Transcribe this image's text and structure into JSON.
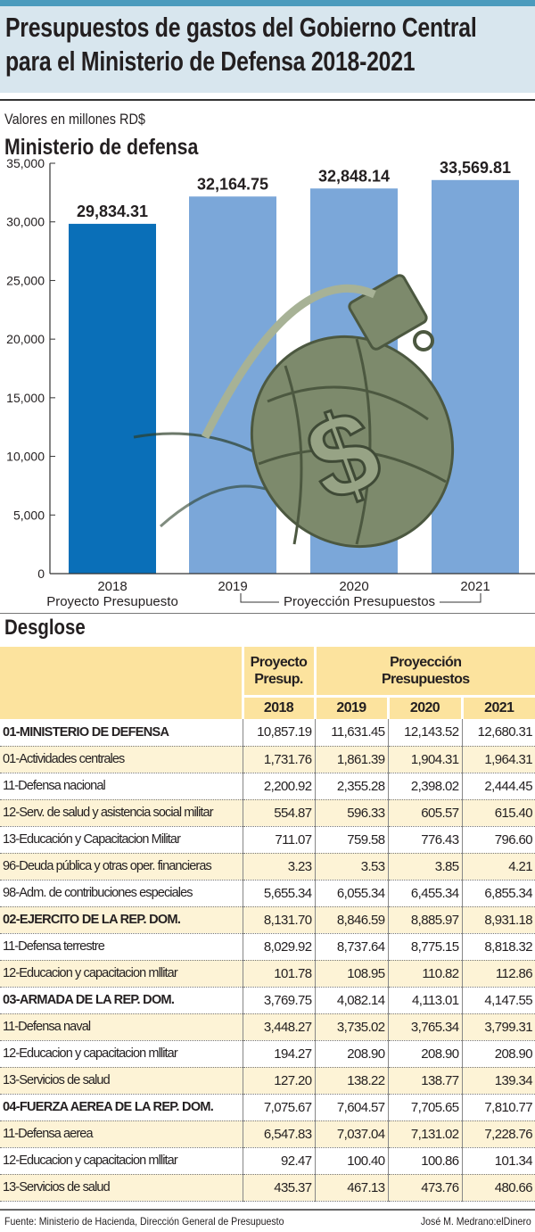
{
  "header": {
    "title_line1": "Presupuestos de gastos del Gobierno Central",
    "title_line2": "para el Ministerio de Defensa 2018-2021",
    "units": "Valores en millones RD$"
  },
  "chart_data": {
    "type": "bar",
    "title": "Ministerio de defensa",
    "categories": [
      "2018",
      "2019",
      "2020",
      "2021"
    ],
    "values": [
      29834.31,
      32164.75,
      32848.14,
      33569.81
    ],
    "data_labels": [
      "29,834.31",
      "32,164.75",
      "32,848.14",
      "33,569.81"
    ],
    "ylim": [
      0,
      35000
    ],
    "yticks": [
      "0",
      "5,000",
      "10,000",
      "15,000",
      "20,000",
      "25,000",
      "30,000",
      "35,000"
    ],
    "grid": false,
    "group_labels": [
      "Proyecto Presupuesto",
      "Proyección Presupuestos"
    ],
    "colors": {
      "2018": "#0a6fb8",
      "projection": "#7ba7d9"
    },
    "decoration": "grenade-with-dollar-sign"
  },
  "table": {
    "title": "Desglose",
    "header_group1": [
      "Proyecto",
      "Presup."
    ],
    "header_group2": [
      "Proyección",
      "Presupuestos"
    ],
    "years": [
      "2018",
      "2019",
      "2020",
      "2021"
    ],
    "rows": [
      {
        "label": "01-MINISTERIO DE DEFENSA",
        "bold": true,
        "values": [
          "10,857.19",
          "11,631.45",
          "12,143.52",
          "12,680.31"
        ]
      },
      {
        "label": "01-Actividades centrales",
        "values": [
          "1,731.76",
          "1,861.39",
          "1,904.31",
          "1,964.31"
        ]
      },
      {
        "label": "11-Defensa nacional",
        "values": [
          "2,200.92",
          "2,355.28",
          "2,398.02",
          "2,444.45"
        ]
      },
      {
        "label": "12-Serv. de salud y asistencia social militar",
        "values": [
          "554.87",
          "596.33",
          "605.57",
          "615.40"
        ]
      },
      {
        "label": "13-Educación y Capacitacion Militar",
        "values": [
          "711.07",
          "759.58",
          "776.43",
          "796.60"
        ]
      },
      {
        "label": "96-Deuda pública y otras oper. financieras",
        "values": [
          "3.23",
          "3.53",
          "3.85",
          "4.21"
        ]
      },
      {
        "label": "98-Adm. de contribuciones especiales",
        "values": [
          "5,655.34",
          "6,055.34",
          "6,455.34",
          "6,855.34"
        ]
      },
      {
        "label": "02-EJERCITO DE LA  REP. DOM.",
        "bold": true,
        "values": [
          "8,131.70",
          "8,846.59",
          "8,885.97",
          "8,931.18"
        ]
      },
      {
        "label": "11-Defensa terrestre",
        "values": [
          "8,029.92",
          "8,737.64",
          "8,775.15",
          "8,818.32"
        ]
      },
      {
        "label": "12-Educacion y capacitacion mllitar",
        "values": [
          "101.78",
          "108.95",
          "110.82",
          "112.86"
        ]
      },
      {
        "label": "03-ARMADA DE LA REP. DOM.",
        "bold": true,
        "values": [
          "3,769.75",
          "4,082.14",
          "4,113.01",
          "4,147.55"
        ]
      },
      {
        "label": "11-Defensa naval",
        "values": [
          "3,448.27",
          "3,735.02",
          "3,765.34",
          "3,799.31"
        ]
      },
      {
        "label": "12-Educacion y capacitacion mllitar",
        "values": [
          "194.27",
          "208.90",
          "208.90",
          "208.90"
        ]
      },
      {
        "label": "13-Servicios de salud",
        "values": [
          "127.20",
          "138.22",
          "138.77",
          "139.34"
        ]
      },
      {
        "label": "04-FUERZA AEREA DE LA  REP. DOM.",
        "bold": true,
        "values": [
          "7,075.67",
          "7,604.57",
          "7,705.65",
          "7,810.77"
        ]
      },
      {
        "label": "11-Defensa aerea",
        "values": [
          "6,547.83",
          "7,037.04",
          "7,131.02",
          "7,228.76"
        ]
      },
      {
        "label": "12-Educacion y capacitacion mllitar",
        "values": [
          "92.47",
          "100.40",
          "100.86",
          "101.34"
        ]
      },
      {
        "label": "13-Servicios de salud",
        "values": [
          "435.37",
          "467.13",
          "473.76",
          "480.66"
        ]
      }
    ]
  },
  "footer": {
    "source": "Fuente: Ministerio de Hacienda, Dirección General de Presupuesto",
    "credit": "José M. Medrano:elDinero"
  }
}
